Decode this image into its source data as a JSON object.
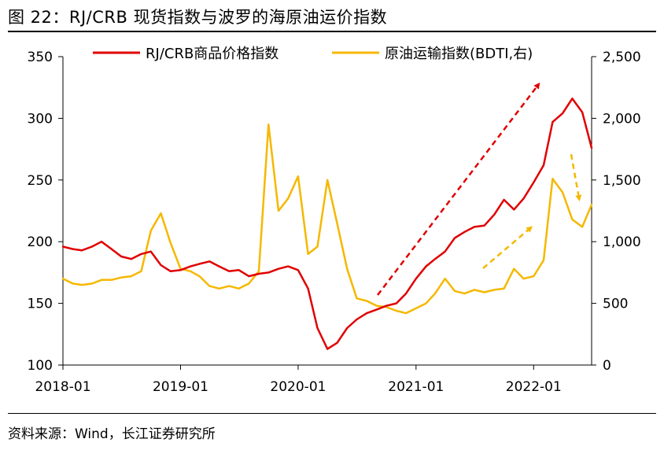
{
  "figure_title": "图 22：RJ/CRB 现货指数与波罗的海原油运价指数",
  "source": "资料来源：Wind，长江证券研究所",
  "chart_data": {
    "type": "line",
    "title": "图 22：RJ/CRB 现货指数与波罗的海原油运价指数",
    "x_ticks": [
      "2018-01",
      "2019-01",
      "2020-01",
      "2021-01",
      "2022-01"
    ],
    "x_range": [
      "2018-01-01",
      "2022-06-30"
    ],
    "y_left": {
      "min": 100,
      "max": 350,
      "ticks": [
        100,
        150,
        200,
        250,
        300,
        350
      ],
      "tick_labels": [
        "100",
        "150",
        "200",
        "250",
        "300",
        "350"
      ]
    },
    "y_right": {
      "min": 0,
      "max": 2500,
      "ticks": [
        0,
        500,
        1000,
        1500,
        2000,
        2500
      ],
      "tick_labels": [
        "0",
        "500",
        "1,000",
        "1,500",
        "2,000",
        "2,500"
      ]
    },
    "legend_position": "top",
    "grid": false,
    "series": [
      {
        "name": "RJ/CRB商品价格指数",
        "axis": "left",
        "color": "#e00000",
        "points": [
          [
            "2018-01-01",
            196
          ],
          [
            "2018-02-01",
            194
          ],
          [
            "2018-03-01",
            193
          ],
          [
            "2018-04-01",
            196
          ],
          [
            "2018-05-01",
            200
          ],
          [
            "2018-06-01",
            194
          ],
          [
            "2018-07-01",
            188
          ],
          [
            "2018-08-01",
            186
          ],
          [
            "2018-09-01",
            190
          ],
          [
            "2018-10-01",
            192
          ],
          [
            "2018-11-01",
            181
          ],
          [
            "2018-12-01",
            176
          ],
          [
            "2019-01-01",
            177
          ],
          [
            "2019-02-01",
            180
          ],
          [
            "2019-03-01",
            182
          ],
          [
            "2019-04-01",
            184
          ],
          [
            "2019-05-01",
            180
          ],
          [
            "2019-06-01",
            176
          ],
          [
            "2019-07-01",
            177
          ],
          [
            "2019-08-01",
            172
          ],
          [
            "2019-09-01",
            174
          ],
          [
            "2019-10-01",
            175
          ],
          [
            "2019-11-01",
            178
          ],
          [
            "2019-12-01",
            180
          ],
          [
            "2020-01-01",
            177
          ],
          [
            "2020-02-01",
            162
          ],
          [
            "2020-03-01",
            130
          ],
          [
            "2020-04-01",
            113
          ],
          [
            "2020-05-01",
            118
          ],
          [
            "2020-06-01",
            130
          ],
          [
            "2020-07-01",
            137
          ],
          [
            "2020-08-01",
            142
          ],
          [
            "2020-09-01",
            145
          ],
          [
            "2020-10-01",
            148
          ],
          [
            "2020-11-01",
            150
          ],
          [
            "2020-12-01",
            158
          ],
          [
            "2021-01-01",
            170
          ],
          [
            "2021-02-01",
            180
          ],
          [
            "2021-03-01",
            186
          ],
          [
            "2021-04-01",
            192
          ],
          [
            "2021-05-01",
            203
          ],
          [
            "2021-06-01",
            208
          ],
          [
            "2021-07-01",
            212
          ],
          [
            "2021-08-01",
            213
          ],
          [
            "2021-09-01",
            222
          ],
          [
            "2021-10-01",
            234
          ],
          [
            "2021-11-01",
            226
          ],
          [
            "2021-12-01",
            235
          ],
          [
            "2022-01-01",
            248
          ],
          [
            "2022-02-01",
            262
          ],
          [
            "2022-03-01",
            297
          ],
          [
            "2022-04-01",
            304
          ],
          [
            "2022-05-01",
            316
          ],
          [
            "2022-06-01",
            305
          ],
          [
            "2022-06-30",
            276
          ]
        ]
      },
      {
        "name": "原油运输指数(BDTI,右)",
        "axis": "right",
        "color": "#f5b800",
        "points": [
          [
            "2018-01-01",
            700
          ],
          [
            "2018-02-01",
            660
          ],
          [
            "2018-03-01",
            650
          ],
          [
            "2018-04-01",
            660
          ],
          [
            "2018-05-01",
            690
          ],
          [
            "2018-06-01",
            690
          ],
          [
            "2018-07-01",
            710
          ],
          [
            "2018-08-01",
            720
          ],
          [
            "2018-09-01",
            760
          ],
          [
            "2018-10-01",
            1090
          ],
          [
            "2018-11-01",
            1230
          ],
          [
            "2018-12-01",
            990
          ],
          [
            "2019-01-01",
            780
          ],
          [
            "2019-02-01",
            760
          ],
          [
            "2019-03-01",
            720
          ],
          [
            "2019-04-01",
            640
          ],
          [
            "2019-05-01",
            620
          ],
          [
            "2019-06-01",
            640
          ],
          [
            "2019-07-01",
            620
          ],
          [
            "2019-08-01",
            660
          ],
          [
            "2019-09-01",
            760
          ],
          [
            "2019-10-01",
            1950
          ],
          [
            "2019-11-01",
            1250
          ],
          [
            "2019-12-01",
            1350
          ],
          [
            "2020-01-01",
            1530
          ],
          [
            "2020-02-01",
            900
          ],
          [
            "2020-03-01",
            960
          ],
          [
            "2020-04-01",
            1500
          ],
          [
            "2020-05-01",
            1150
          ],
          [
            "2020-06-01",
            780
          ],
          [
            "2020-07-01",
            540
          ],
          [
            "2020-08-01",
            520
          ],
          [
            "2020-09-01",
            480
          ],
          [
            "2020-10-01",
            470
          ],
          [
            "2020-11-01",
            440
          ],
          [
            "2020-12-01",
            420
          ],
          [
            "2021-01-01",
            460
          ],
          [
            "2021-02-01",
            500
          ],
          [
            "2021-03-01",
            580
          ],
          [
            "2021-04-01",
            700
          ],
          [
            "2021-05-01",
            600
          ],
          [
            "2021-06-01",
            580
          ],
          [
            "2021-07-01",
            610
          ],
          [
            "2021-08-01",
            590
          ],
          [
            "2021-09-01",
            610
          ],
          [
            "2021-10-01",
            620
          ],
          [
            "2021-11-01",
            780
          ],
          [
            "2021-12-01",
            700
          ],
          [
            "2022-01-01",
            720
          ],
          [
            "2022-02-01",
            850
          ],
          [
            "2022-03-01",
            1510
          ],
          [
            "2022-04-01",
            1400
          ],
          [
            "2022-05-01",
            1180
          ],
          [
            "2022-06-01",
            1120
          ],
          [
            "2022-06-30",
            1300
          ]
        ]
      }
    ]
  }
}
